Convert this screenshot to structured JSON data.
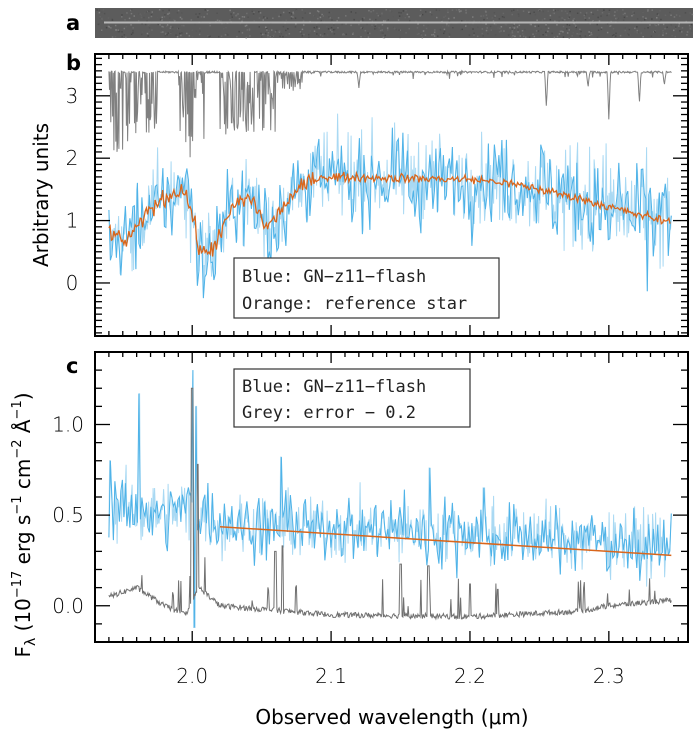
{
  "chart_data": [
    {
      "panel": "a",
      "type": "heatmap",
      "title": "",
      "description": "2D spectrum strip with a single bright horizontal trace",
      "colors": {
        "background": "#5c5c5c",
        "trace": "#c8c8c8"
      }
    },
    {
      "panel": "b",
      "type": "line",
      "xlabel": "",
      "ylabel": "Arbitrary units",
      "xlim": [
        1.93,
        2.357
      ],
      "ylim": [
        -0.85,
        3.67
      ],
      "xticks_major": [
        2.0,
        2.1,
        2.2,
        2.3
      ],
      "xtick_minor_step": 0.01,
      "yticks": [
        0,
        1,
        2,
        3
      ],
      "yticklabels": [
        "0",
        "1",
        "2",
        "3"
      ],
      "ytick_minor_step": 0.1,
      "legend": {
        "placement": "bottom-center",
        "entries": [
          "Blue: GN-z11-flash",
          "Orange: reference star"
        ]
      },
      "series": [
        {
          "name": "Telluric transmission (grey)",
          "color": "#808080",
          "x_range": [
            1.94,
            2.345
          ],
          "baseline": 3.38,
          "absorption_bands": [
            {
              "x": [
                1.94,
                1.975
              ],
              "depth": 1.3
            },
            {
              "x": [
                1.99,
                2.01
              ],
              "depth": 1.4
            },
            {
              "x": [
                2.02,
                2.06
              ],
              "depth": 1.0
            },
            {
              "x": [
                2.06,
                2.08
              ],
              "depth": 0.3
            }
          ],
          "isolated_dips": [
            [
              2.12,
              0.25
            ],
            [
              2.255,
              0.55
            ],
            [
              2.285,
              0.25
            ],
            [
              2.3,
              0.75
            ],
            [
              2.322,
              0.5
            ],
            [
              2.34,
              0.2
            ]
          ]
        },
        {
          "name": "GN-z11-flash",
          "color": "#4fb3e8",
          "x_range": [
            1.94,
            2.345
          ],
          "noise": 0.35,
          "follows": "reference star"
        },
        {
          "name": "reference star",
          "color": "#d9661c",
          "x": [
            1.94,
            1.95,
            1.96,
            1.97,
            1.98,
            1.99,
            1.995,
            2.0,
            2.005,
            2.01,
            2.015,
            2.02,
            2.03,
            2.04,
            2.045,
            2.05,
            2.055,
            2.06,
            2.065,
            2.07,
            2.08,
            2.09,
            2.1,
            2.15,
            2.2,
            2.22,
            2.24,
            2.26,
            2.28,
            2.3,
            2.32,
            2.345
          ],
          "y": [
            0.85,
            0.65,
            0.85,
            1.2,
            1.35,
            1.5,
            1.45,
            1.1,
            0.55,
            0.45,
            0.6,
            0.75,
            1.25,
            1.35,
            1.3,
            1.0,
            0.9,
            1.05,
            1.2,
            1.35,
            1.55,
            1.7,
            1.7,
            1.68,
            1.66,
            1.62,
            1.55,
            1.45,
            1.35,
            1.22,
            1.1,
            0.97
          ]
        }
      ]
    },
    {
      "panel": "c",
      "type": "line",
      "xlabel": "Observed wavelength (μm)",
      "ylabel": "Fλ (10⁻¹⁷ erg s⁻¹ cm⁻² Å⁻¹)",
      "xlim": [
        1.93,
        2.357
      ],
      "ylim": [
        -0.2,
        1.4
      ],
      "xticks_major": [
        2.0,
        2.1,
        2.2,
        2.3
      ],
      "xticklabels": [
        "2.0",
        "2.1",
        "2.2",
        "2.3"
      ],
      "xtick_minor_step": 0.01,
      "yticks": [
        0.0,
        0.5,
        1.0
      ],
      "yticklabels": [
        "0.0",
        "0.5",
        "1.0"
      ],
      "ytick_minor_step": 0.1,
      "legend": {
        "placement": "top-center",
        "entries": [
          "Blue: GN-z11-flash",
          "Grey: error − 0.2"
        ]
      },
      "series": [
        {
          "name": "GN-z11-flash",
          "color": "#4fb3e8",
          "x": [
            1.94,
            1.96,
            1.98,
            2.0,
            2.02,
            2.1,
            2.2,
            2.3,
            2.345
          ],
          "y": [
            0.55,
            0.52,
            0.5,
            0.55,
            0.45,
            0.43,
            0.4,
            0.36,
            0.33
          ],
          "noise": 0.09,
          "spikes": [
            [
              1.941,
              0.8
            ],
            [
              1.962,
              1.17
            ],
            [
              2.001,
              1.3
            ],
            [
              2.003,
              1.1
            ],
            [
              2.064,
              0.82
            ],
            [
              2.171,
              0.76
            ],
            [
              2.21,
              0.65
            ]
          ]
        },
        {
          "name": "error - 0.2 (grey)",
          "color": "#707070",
          "x": [
            1.94,
            1.96,
            1.98,
            1.995,
            2.005,
            2.02,
            2.1,
            2.2,
            2.28,
            2.3,
            2.345
          ],
          "y": [
            0.05,
            0.1,
            0.0,
            -0.05,
            0.1,
            0.0,
            -0.05,
            -0.06,
            -0.03,
            0.0,
            0.03
          ],
          "spikes": [
            [
              2.0,
              1.2
            ],
            [
              2.004,
              0.78
            ],
            [
              2.06,
              0.3
            ],
            [
              2.065,
              0.33
            ],
            [
              2.15,
              0.23
            ],
            [
              2.17,
              0.22
            ],
            [
              2.2,
              0.12
            ],
            [
              2.22,
              0.09
            ]
          ]
        },
        {
          "name": "Power-law fit (orange)",
          "color": "#d9661c",
          "x": [
            2.02,
            2.345
          ],
          "y": [
            0.436,
            0.278
          ]
        }
      ]
    }
  ],
  "labels": {
    "panel_a": "a",
    "panel_b": "b",
    "panel_c": "c",
    "b_ylabel": "Arbitrary units",
    "c_ylabel_prefix": "F",
    "c_ylabel_sub": "λ",
    "c_ylabel_rest1": " (10",
    "c_ylabel_sup1": "−17",
    "c_ylabel_rest2": " erg s",
    "c_ylabel_sup2": "−1",
    "c_ylabel_rest3": " cm",
    "c_ylabel_sup3": "−2",
    "c_ylabel_rest4": " Å",
    "c_ylabel_sup4": "−1",
    "c_ylabel_rest5": ")",
    "xlabel": "Observed wavelength (μm)",
    "legend_b_1": "Blue: GN−z11−flash",
    "legend_b_2": "Orange: reference star",
    "legend_c_1": "Blue: GN−z11−flash",
    "legend_c_2": "Grey: error − 0.2"
  }
}
